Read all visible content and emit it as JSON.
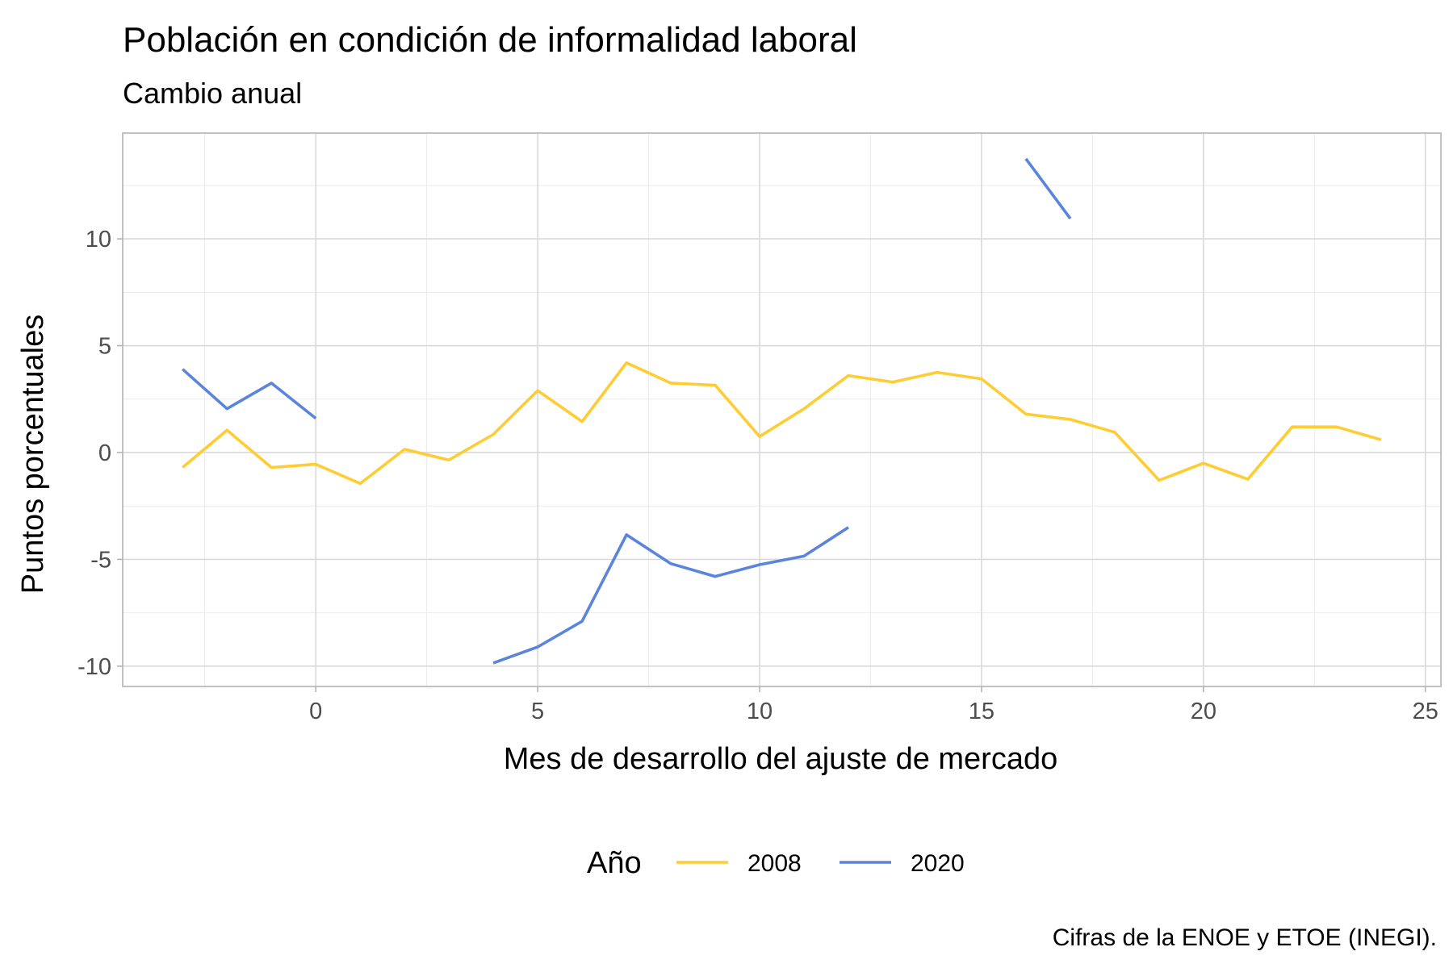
{
  "chart_data": {
    "type": "line",
    "title": "Población en condición de informalidad laboral",
    "subtitle": "Cambio anual",
    "xlabel": "Mes de desarrollo del ajuste de mercado",
    "ylabel": "Puntos porcentuales",
    "caption": "Cifras de la ENOE y ETOE (INEGI).",
    "xlim": [
      -4.35,
      25.35
    ],
    "ylim": [
      -10.95,
      14.95
    ],
    "x_ticks": [
      0,
      5,
      10,
      15,
      20,
      25
    ],
    "y_ticks": [
      -10,
      -5,
      0,
      5,
      10
    ],
    "x_tick_labels": [
      "0",
      "5",
      "10",
      "15",
      "20",
      "25"
    ],
    "y_tick_labels": [
      "-10",
      "-5",
      "0",
      "5",
      "10"
    ],
    "grid": true,
    "legend": {
      "title": "Año",
      "position": "bottom"
    },
    "series": [
      {
        "name": "2008",
        "color": "#FFCC33",
        "segments": [
          {
            "x": [
              -3,
              -2,
              -1,
              0,
              1,
              2,
              3,
              4,
              5,
              6,
              7,
              8,
              9,
              10,
              11,
              12,
              13,
              14,
              15,
              16,
              17,
              18,
              19,
              20,
              21,
              22,
              23,
              24
            ],
            "y": [
              -0.7,
              1.05,
              -0.7,
              -0.55,
              -1.45,
              0.15,
              -0.35,
              0.85,
              2.9,
              1.45,
              4.2,
              3.25,
              3.15,
              0.75,
              2.05,
              3.6,
              3.3,
              3.75,
              3.45,
              1.8,
              1.55,
              0.95,
              -1.3,
              -0.5,
              -1.25,
              1.2,
              1.2,
              0.6
            ]
          }
        ]
      },
      {
        "name": "2020",
        "color": "#5B84DC",
        "segments": [
          {
            "x": [
              -3,
              -2,
              -1,
              0
            ],
            "y": [
              3.9,
              2.05,
              3.25,
              1.6
            ]
          },
          {
            "x": [
              4,
              5,
              6,
              7,
              8,
              9,
              10,
              11,
              12
            ],
            "y": [
              -9.85,
              -9.1,
              -7.9,
              -3.85,
              -5.2,
              -5.8,
              -5.25,
              -4.85,
              -3.5
            ]
          },
          {
            "x": [
              16,
              17
            ],
            "y": [
              13.75,
              10.95
            ]
          }
        ]
      }
    ]
  }
}
